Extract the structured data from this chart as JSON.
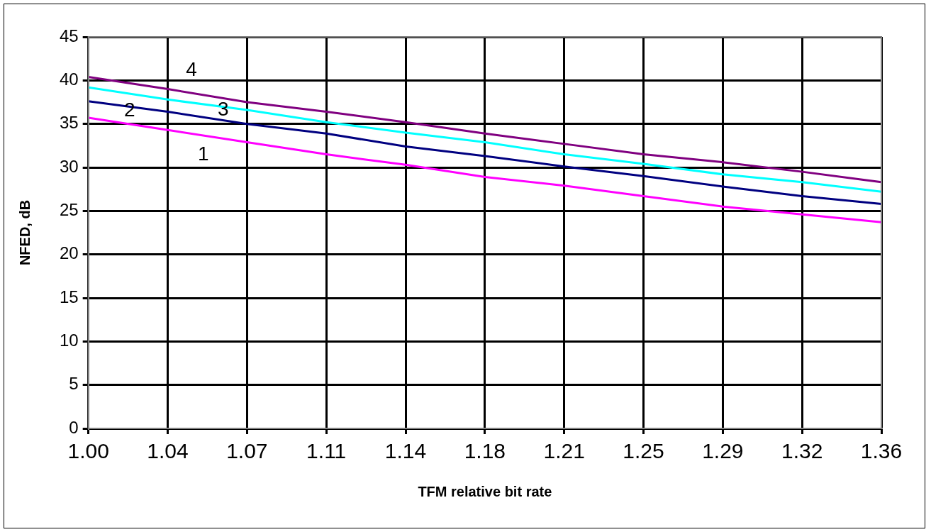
{
  "chart_data": {
    "type": "line",
    "xlabel": "TFM relative bit rate",
    "ylabel": "NFED, dB",
    "categories": [
      "1.00",
      "1.04",
      "1.07",
      "1.11",
      "1.14",
      "1.18",
      "1.21",
      "1.25",
      "1.29",
      "1.32",
      "1.36"
    ],
    "series": [
      {
        "name": "1",
        "color": "#ff00ff",
        "values": [
          35.7,
          34.3,
          32.9,
          31.5,
          30.3,
          28.9,
          27.9,
          26.7,
          25.5,
          24.6,
          23.7
        ]
      },
      {
        "name": "2",
        "color": "#000080",
        "values": [
          37.6,
          36.4,
          35.0,
          33.9,
          32.4,
          31.3,
          30.1,
          29.0,
          27.8,
          26.7,
          25.8
        ]
      },
      {
        "name": "3",
        "color": "#00ffff",
        "values": [
          39.2,
          37.8,
          36.6,
          35.2,
          34.0,
          32.9,
          31.5,
          30.4,
          29.2,
          28.3,
          27.2
        ]
      },
      {
        "name": "4",
        "color": "#800080",
        "values": [
          40.4,
          39.0,
          37.5,
          36.4,
          35.2,
          33.9,
          32.7,
          31.5,
          30.6,
          29.5,
          28.3
        ]
      }
    ],
    "ylim": [
      0,
      45
    ],
    "yticks": [
      0,
      5,
      10,
      15,
      20,
      25,
      30,
      35,
      40,
      45
    ],
    "grid": true,
    "legend": false,
    "marker": "none",
    "line_style": "solid"
  }
}
